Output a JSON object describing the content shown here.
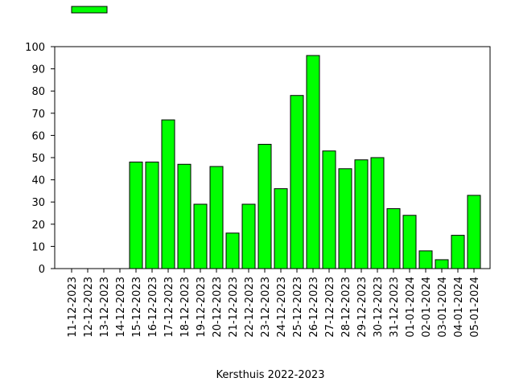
{
  "chart_data": {
    "type": "bar",
    "x_label": "Kersthuis 2022-2023",
    "categories": [
      "11-12-2023",
      "12-12-2023",
      "13-12-2023",
      "14-12-2023",
      "15-12-2023",
      "16-12-2023",
      "17-12-2023",
      "18-12-2023",
      "19-12-2023",
      "20-12-2023",
      "21-12-2023",
      "22-12-2023",
      "23-12-2023",
      "24-12-2023",
      "25-12-2023",
      "26-12-2023",
      "27-12-2023",
      "28-12-2023",
      "29-12-2023",
      "30-12-2023",
      "31-12-2023",
      "01-01-2024",
      "02-01-2024",
      "03-01-2024",
      "04-01-2024",
      "05-01-2024"
    ],
    "values": [
      0,
      0,
      0,
      0,
      48,
      48,
      67,
      47,
      29,
      46,
      16,
      29,
      56,
      36,
      78,
      96,
      53,
      45,
      49,
      50,
      27,
      24,
      8,
      4,
      15,
      33
    ],
    "color": "#00ff00",
    "ylim": [
      0,
      100
    ],
    "yticks": [
      0,
      10,
      20,
      30,
      40,
      50,
      60,
      70,
      80,
      90,
      100
    ]
  }
}
